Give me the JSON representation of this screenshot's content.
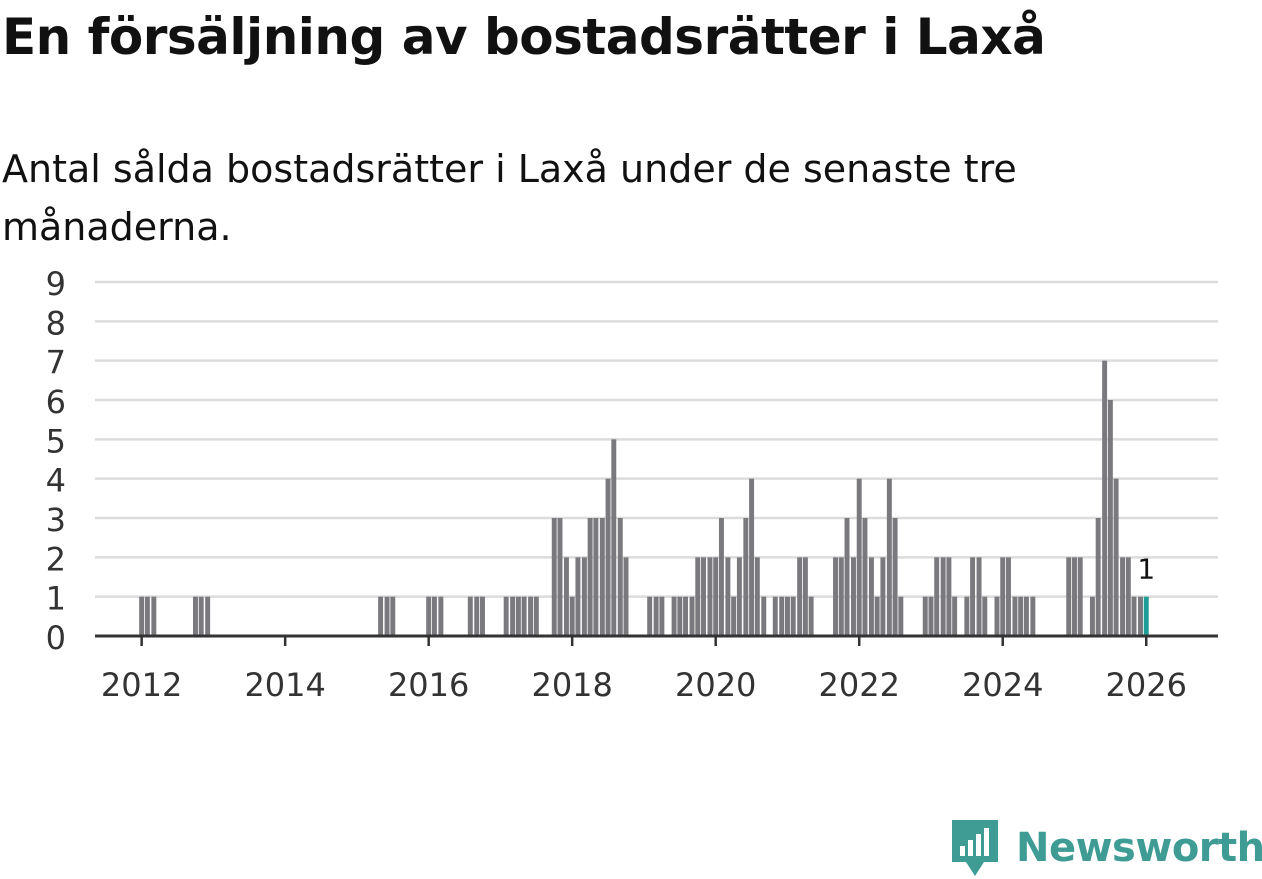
{
  "title": "En försäljning av bostadsrätter i Laxå",
  "subtitle": "Antal sålda bostadsrätter i Laxå under de senaste tre månaderna.",
  "brand": {
    "name": "Newsworthy",
    "color": "#3f9c95",
    "icon": "newsworthy-logo-icon"
  },
  "colors": {
    "bar": "#7a797e",
    "highlight": "#1f9e96",
    "grid": "#dcdcdc",
    "axis": "#333333",
    "text": "#333333"
  },
  "chart_data": {
    "type": "bar",
    "title": "En försäljning av bostadsrätter i Laxå",
    "xlabel": "",
    "ylabel": "",
    "xlim": [
      2011.35,
      2027.0
    ],
    "ylim": [
      0,
      9
    ],
    "yticks": [
      0,
      1,
      2,
      3,
      4,
      5,
      6,
      7,
      8,
      9
    ],
    "xticks": [
      2012,
      2014,
      2016,
      2018,
      2020,
      2022,
      2024,
      2026
    ],
    "grid": true,
    "bar_width_years": 0.069,
    "series": [
      {
        "name": "Sålda bostadsrätter",
        "points": [
          {
            "x": 2012.0,
            "y": 1
          },
          {
            "x": 2012.08,
            "y": 1
          },
          {
            "x": 2012.17,
            "y": 1
          },
          {
            "x": 2012.75,
            "y": 1
          },
          {
            "x": 2012.83,
            "y": 1
          },
          {
            "x": 2012.92,
            "y": 1
          },
          {
            "x": 2015.33,
            "y": 1
          },
          {
            "x": 2015.42,
            "y": 1
          },
          {
            "x": 2015.5,
            "y": 1
          },
          {
            "x": 2016.0,
            "y": 1
          },
          {
            "x": 2016.08,
            "y": 1
          },
          {
            "x": 2016.17,
            "y": 1
          },
          {
            "x": 2016.58,
            "y": 1
          },
          {
            "x": 2016.67,
            "y": 1
          },
          {
            "x": 2016.75,
            "y": 1
          },
          {
            "x": 2017.08,
            "y": 1
          },
          {
            "x": 2017.17,
            "y": 1
          },
          {
            "x": 2017.25,
            "y": 1
          },
          {
            "x": 2017.33,
            "y": 1
          },
          {
            "x": 2017.42,
            "y": 1
          },
          {
            "x": 2017.5,
            "y": 1
          },
          {
            "x": 2017.75,
            "y": 3
          },
          {
            "x": 2017.83,
            "y": 3
          },
          {
            "x": 2017.92,
            "y": 2
          },
          {
            "x": 2018.0,
            "y": 1
          },
          {
            "x": 2018.08,
            "y": 2
          },
          {
            "x": 2018.17,
            "y": 2
          },
          {
            "x": 2018.25,
            "y": 3
          },
          {
            "x": 2018.33,
            "y": 3
          },
          {
            "x": 2018.42,
            "y": 3
          },
          {
            "x": 2018.5,
            "y": 4
          },
          {
            "x": 2018.58,
            "y": 5
          },
          {
            "x": 2018.67,
            "y": 3
          },
          {
            "x": 2018.75,
            "y": 2
          },
          {
            "x": 2019.08,
            "y": 1
          },
          {
            "x": 2019.17,
            "y": 1
          },
          {
            "x": 2019.25,
            "y": 1
          },
          {
            "x": 2019.42,
            "y": 1
          },
          {
            "x": 2019.5,
            "y": 1
          },
          {
            "x": 2019.58,
            "y": 1
          },
          {
            "x": 2019.67,
            "y": 1
          },
          {
            "x": 2019.75,
            "y": 2
          },
          {
            "x": 2019.83,
            "y": 2
          },
          {
            "x": 2019.92,
            "y": 2
          },
          {
            "x": 2020.0,
            "y": 2
          },
          {
            "x": 2020.08,
            "y": 3
          },
          {
            "x": 2020.17,
            "y": 2
          },
          {
            "x": 2020.25,
            "y": 1
          },
          {
            "x": 2020.33,
            "y": 2
          },
          {
            "x": 2020.42,
            "y": 3
          },
          {
            "x": 2020.5,
            "y": 4
          },
          {
            "x": 2020.58,
            "y": 2
          },
          {
            "x": 2020.67,
            "y": 1
          },
          {
            "x": 2020.83,
            "y": 1
          },
          {
            "x": 2020.92,
            "y": 1
          },
          {
            "x": 2021.0,
            "y": 1
          },
          {
            "x": 2021.08,
            "y": 1
          },
          {
            "x": 2021.17,
            "y": 2
          },
          {
            "x": 2021.25,
            "y": 2
          },
          {
            "x": 2021.33,
            "y": 1
          },
          {
            "x": 2021.67,
            "y": 2
          },
          {
            "x": 2021.75,
            "y": 2
          },
          {
            "x": 2021.83,
            "y": 3
          },
          {
            "x": 2021.92,
            "y": 2
          },
          {
            "x": 2022.0,
            "y": 4
          },
          {
            "x": 2022.08,
            "y": 3
          },
          {
            "x": 2022.17,
            "y": 2
          },
          {
            "x": 2022.25,
            "y": 1
          },
          {
            "x": 2022.33,
            "y": 2
          },
          {
            "x": 2022.42,
            "y": 4
          },
          {
            "x": 2022.5,
            "y": 3
          },
          {
            "x": 2022.58,
            "y": 1
          },
          {
            "x": 2022.92,
            "y": 1
          },
          {
            "x": 2023.0,
            "y": 1
          },
          {
            "x": 2023.08,
            "y": 2
          },
          {
            "x": 2023.17,
            "y": 2
          },
          {
            "x": 2023.25,
            "y": 2
          },
          {
            "x": 2023.33,
            "y": 1
          },
          {
            "x": 2023.5,
            "y": 1
          },
          {
            "x": 2023.58,
            "y": 2
          },
          {
            "x": 2023.67,
            "y": 2
          },
          {
            "x": 2023.75,
            "y": 1
          },
          {
            "x": 2023.92,
            "y": 1
          },
          {
            "x": 2024.0,
            "y": 2
          },
          {
            "x": 2024.08,
            "y": 2
          },
          {
            "x": 2024.17,
            "y": 1
          },
          {
            "x": 2024.25,
            "y": 1
          },
          {
            "x": 2024.33,
            "y": 1
          },
          {
            "x": 2024.42,
            "y": 1
          },
          {
            "x": 2024.92,
            "y": 2
          },
          {
            "x": 2025.0,
            "y": 2
          },
          {
            "x": 2025.08,
            "y": 2
          },
          {
            "x": 2025.25,
            "y": 1
          },
          {
            "x": 2025.33,
            "y": 3
          },
          {
            "x": 2025.42,
            "y": 7
          },
          {
            "x": 2025.5,
            "y": 6
          },
          {
            "x": 2025.58,
            "y": 4
          },
          {
            "x": 2025.67,
            "y": 2
          },
          {
            "x": 2025.75,
            "y": 2
          },
          {
            "x": 2025.83,
            "y": 1
          },
          {
            "x": 2025.92,
            "y": 1
          },
          {
            "x": 2026.0,
            "y": 1,
            "highlight": true
          }
        ]
      }
    ],
    "annotations": [
      {
        "x": 2026.0,
        "y": 1,
        "text": "1"
      }
    ]
  }
}
